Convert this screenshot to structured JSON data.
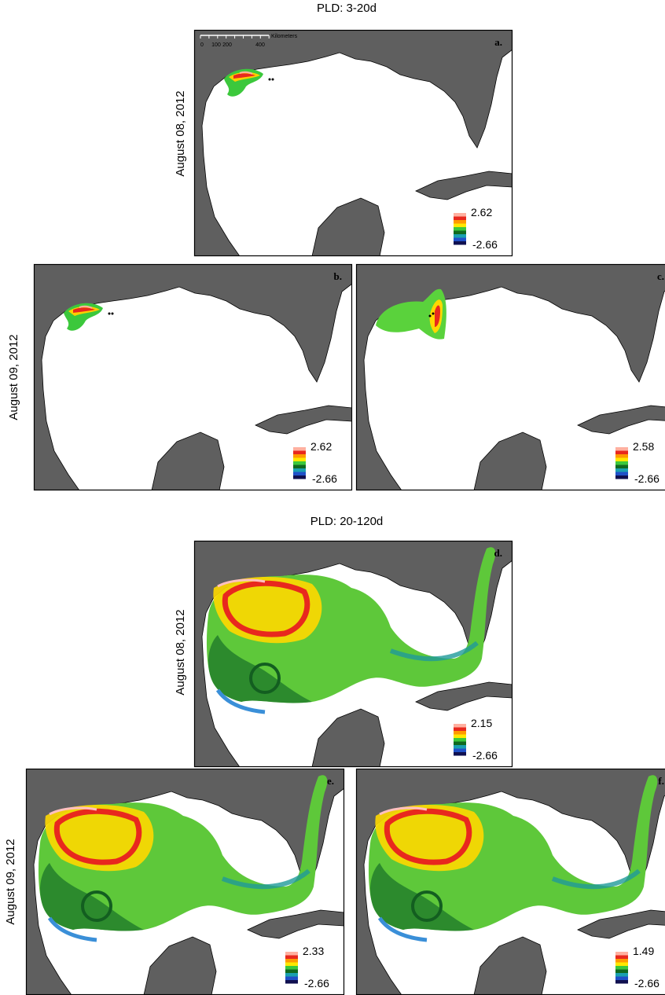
{
  "sections": [
    {
      "title": "PLD: 3-20d"
    },
    {
      "title": "PLD: 20-120d"
    }
  ],
  "row_labels": [
    "August 08, 2012",
    "August 09, 2012",
    "August 08, 2012",
    "August 09, 2012"
  ],
  "scale_bar": {
    "ticks": [
      "0",
      "100",
      "200",
      "400"
    ],
    "unit": "Kilometers"
  },
  "panels": [
    {
      "letter": "a.",
      "max": 2.62,
      "min": -2.66
    },
    {
      "letter": "b.",
      "max": 2.62,
      "min": -2.66
    },
    {
      "letter": "c.",
      "max": 2.58,
      "min": -2.66
    },
    {
      "letter": "d.",
      "max": 2.15,
      "min": -2.66
    },
    {
      "letter": "e.",
      "max": 2.33,
      "min": -2.66
    },
    {
      "letter": "f.",
      "max": 1.49,
      "min": -2.66
    }
  ]
}
